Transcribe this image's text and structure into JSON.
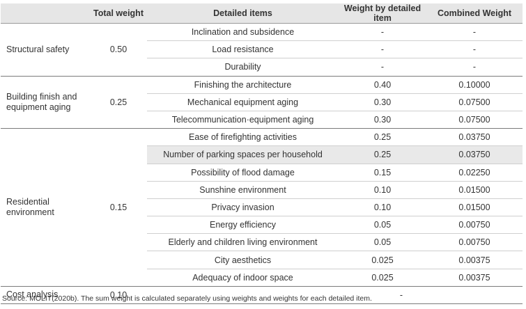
{
  "headers": {
    "category": "",
    "total_weight": "Total weight",
    "detailed_items": "Detailed items",
    "weight_by_item": "Weight by detailed item",
    "combined_weight": "Combined Weight"
  },
  "groups": [
    {
      "category": "Structural safety",
      "total_weight": "0.50",
      "items": [
        {
          "item": "Inclination and subsidence",
          "weight": "-",
          "combined": "-"
        },
        {
          "item": "Load resistance",
          "weight": "-",
          "combined": "-"
        },
        {
          "item": "Durability",
          "weight": "-",
          "combined": "-"
        }
      ]
    },
    {
      "category": "Building finish and equipment aging",
      "total_weight": "0.25",
      "items": [
        {
          "item": "Finishing the architecture",
          "weight": "0.40",
          "combined": "0.10000"
        },
        {
          "item": "Mechanical equipment aging",
          "weight": "0.30",
          "combined": "0.07500"
        },
        {
          "item": "Telecommunication·equipment aging",
          "weight": "0.30",
          "combined": "0.07500"
        }
      ]
    },
    {
      "category": "Residential environment",
      "total_weight": "0.15",
      "items": [
        {
          "item": "Ease of firefighting activities",
          "weight": "0.25",
          "combined": "0.03750"
        },
        {
          "item": "Number of parking spaces per household",
          "weight": "0.25",
          "combined": "0.03750"
        },
        {
          "item": "Possibility of flood damage",
          "weight": "0.15",
          "combined": "0.02250"
        },
        {
          "item": "Sunshine environment",
          "weight": "0.10",
          "combined": "0.01500"
        },
        {
          "item": "Privacy invasion",
          "weight": "0.10",
          "combined": "0.01500"
        },
        {
          "item": "Energy efficiency",
          "weight": "0.05",
          "combined": "0.00750"
        },
        {
          "item": "Elderly and children living environment",
          "weight": "0.05",
          "combined": "0.00750"
        },
        {
          "item": "City aesthetics",
          "weight": "0.025",
          "combined": "0.00375"
        },
        {
          "item": "Adequacy of indoor space",
          "weight": "0.025",
          "combined": "0.00375"
        }
      ]
    },
    {
      "category": "Cost analysis",
      "total_weight": "0.10",
      "merged_value": "-"
    }
  ],
  "source_note": "Source: MOLIT(2020b). The sum weight is calculated separately using weights and weights for each detailed item.",
  "colors": {
    "header_bg": "#e6e6e6",
    "highlight_bg": "#e9e9e9",
    "text": "#333333"
  }
}
